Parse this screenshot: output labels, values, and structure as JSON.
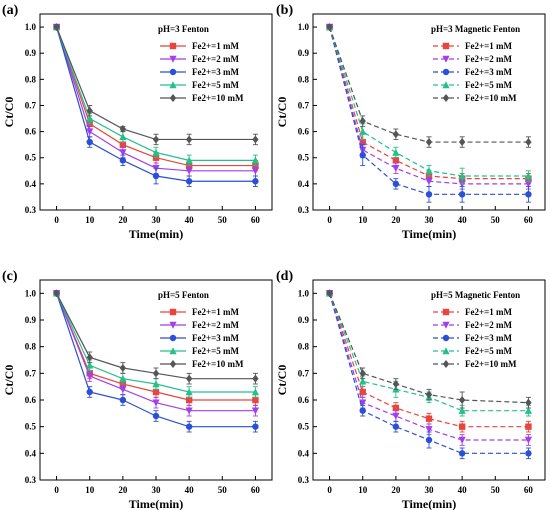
{
  "figure": {
    "panels": [
      {
        "label": "(a)",
        "title": "pH=3 Fenton",
        "ylabel": "Ct/C0",
        "xlabel": "Time(min)",
        "dashed": false,
        "legend": "top-right"
      },
      {
        "label": "(b)",
        "title": "pH=3 Magnetic Fenton",
        "ylabel": "Ct/C0",
        "xlabel": "Time(min)",
        "dashed": true,
        "legend": "top-right"
      },
      {
        "label": "(c)",
        "title": "pH=5 Fenton",
        "ylabel": "Ct/C0",
        "xlabel": "Time(min)",
        "dashed": false,
        "legend": "top-right"
      },
      {
        "label": "(d)",
        "title": "pH=5 Magnetic Fenton",
        "ylabel": "Ct/C0",
        "xlabel": "Time(min)",
        "dashed": true,
        "legend": "top-right"
      }
    ]
  },
  "colors": {
    "1mM": "#e8453c",
    "2mM": "#a43ee8",
    "3mM": "#2b4fd6",
    "5mM": "#25c08a",
    "10mM": "#555555"
  },
  "chart_data": [
    {
      "type": "line",
      "title": "pH=3 Fenton",
      "xlabel": "Time(min)",
      "ylabel": "Ct/C0",
      "x": [
        0,
        10,
        20,
        30,
        40,
        60
      ],
      "xticks": [
        "0",
        "10",
        "20",
        "30",
        "40",
        "50",
        "60"
      ],
      "yticks": [
        "0.3",
        "0.4",
        "0.5",
        "0.6",
        "0.7",
        "0.8",
        "0.9",
        "1.0"
      ],
      "xlim": [
        -5,
        65
      ],
      "ylim": [
        0.3,
        1.05
      ],
      "series": [
        {
          "name": "Fe2+=1 mM",
          "color": "#e8453c",
          "marker": "square",
          "values": [
            1.0,
            0.63,
            0.55,
            0.5,
            0.47,
            0.47
          ],
          "err": [
            0,
            0.02,
            0.02,
            0.02,
            0.02,
            0.02
          ]
        },
        {
          "name": "Fe2+=2 mM",
          "color": "#a43ee8",
          "marker": "triangle-down",
          "values": [
            1.0,
            0.6,
            0.52,
            0.46,
            0.45,
            0.45
          ],
          "err": [
            0,
            0.02,
            0.02,
            0.02,
            0.02,
            0.02
          ]
        },
        {
          "name": "Fe2+=3 mM",
          "color": "#2b4fd6",
          "marker": "circle",
          "values": [
            1.0,
            0.56,
            0.49,
            0.43,
            0.41,
            0.41
          ],
          "err": [
            0,
            0.02,
            0.02,
            0.03,
            0.02,
            0.02
          ]
        },
        {
          "name": "Fe2+=5 mM",
          "color": "#25c08a",
          "marker": "triangle-up",
          "values": [
            1.0,
            0.65,
            0.58,
            0.52,
            0.49,
            0.49
          ],
          "err": [
            0,
            0.02,
            0.02,
            0.02,
            0.02,
            0.02
          ]
        },
        {
          "name": "Fe2+=10 mM",
          "color": "#555555",
          "marker": "diamond",
          "values": [
            1.0,
            0.68,
            0.61,
            0.57,
            0.57,
            0.57
          ],
          "err": [
            0,
            0.02,
            0.01,
            0.02,
            0.02,
            0.02
          ]
        }
      ]
    },
    {
      "type": "line",
      "title": "pH=3 Magnetic Fenton",
      "xlabel": "Time(min)",
      "ylabel": "Ct/C0",
      "x": [
        0,
        10,
        20,
        30,
        40,
        60
      ],
      "xticks": [
        "0",
        "10",
        "20",
        "30",
        "40",
        "50",
        "60"
      ],
      "yticks": [
        "0.3",
        "0.4",
        "0.5",
        "0.6",
        "0.7",
        "0.8",
        "0.9",
        "1.0"
      ],
      "xlim": [
        -5,
        65
      ],
      "ylim": [
        0.3,
        1.05
      ],
      "series": [
        {
          "name": "Fe2+=1 mM",
          "color": "#e8453c",
          "marker": "square",
          "values": [
            1.0,
            0.56,
            0.49,
            0.43,
            0.42,
            0.42
          ],
          "err": [
            0,
            0.03,
            0.02,
            0.02,
            0.02,
            0.02
          ]
        },
        {
          "name": "Fe2+=2 mM",
          "color": "#a43ee8",
          "marker": "triangle-down",
          "values": [
            1.0,
            0.53,
            0.46,
            0.41,
            0.4,
            0.4
          ],
          "err": [
            0,
            0.03,
            0.02,
            0.02,
            0.02,
            0.02
          ]
        },
        {
          "name": "Fe2+=3 mM",
          "color": "#2b4fd6",
          "marker": "circle",
          "values": [
            1.0,
            0.51,
            0.4,
            0.36,
            0.36,
            0.36
          ],
          "err": [
            0,
            0.04,
            0.02,
            0.03,
            0.03,
            0.03
          ]
        },
        {
          "name": "Fe2+=5 mM",
          "color": "#25c08a",
          "marker": "triangle-up",
          "values": [
            1.0,
            0.6,
            0.52,
            0.45,
            0.43,
            0.43
          ],
          "err": [
            0,
            0.03,
            0.02,
            0.02,
            0.03,
            0.02
          ]
        },
        {
          "name": "Fe2+=10 mM",
          "color": "#555555",
          "marker": "diamond",
          "values": [
            1.0,
            0.64,
            0.59,
            0.56,
            0.56,
            0.56
          ],
          "err": [
            0,
            0.02,
            0.02,
            0.02,
            0.02,
            0.02
          ]
        }
      ]
    },
    {
      "type": "line",
      "title": "pH=5 Fenton",
      "xlabel": "Time(min)",
      "ylabel": "Ct/C0",
      "x": [
        0,
        10,
        20,
        30,
        40,
        60
      ],
      "xticks": [
        "0",
        "10",
        "20",
        "30",
        "40",
        "50",
        "60"
      ],
      "yticks": [
        "0.3",
        "0.4",
        "0.5",
        "0.6",
        "0.7",
        "0.8",
        "0.9",
        "1.0"
      ],
      "xlim": [
        -5,
        65
      ],
      "ylim": [
        0.3,
        1.05
      ],
      "series": [
        {
          "name": "Fe2+=1 mM",
          "color": "#e8453c",
          "marker": "square",
          "values": [
            1.0,
            0.7,
            0.66,
            0.63,
            0.6,
            0.6
          ],
          "err": [
            0,
            0.02,
            0.02,
            0.02,
            0.02,
            0.02
          ]
        },
        {
          "name": "Fe2+=2 mM",
          "color": "#a43ee8",
          "marker": "triangle-down",
          "values": [
            1.0,
            0.69,
            0.64,
            0.59,
            0.56,
            0.56
          ],
          "err": [
            0,
            0.02,
            0.02,
            0.02,
            0.02,
            0.02
          ]
        },
        {
          "name": "Fe2+=3 mM",
          "color": "#2b4fd6",
          "marker": "circle",
          "values": [
            1.0,
            0.63,
            0.6,
            0.54,
            0.5,
            0.5
          ],
          "err": [
            0,
            0.02,
            0.02,
            0.02,
            0.02,
            0.02
          ]
        },
        {
          "name": "Fe2+=5 mM",
          "color": "#25c08a",
          "marker": "triangle-up",
          "values": [
            1.0,
            0.73,
            0.68,
            0.66,
            0.63,
            0.63
          ],
          "err": [
            0,
            0.02,
            0.02,
            0.02,
            0.02,
            0.02
          ]
        },
        {
          "name": "Fe2+=10 mM",
          "color": "#555555",
          "marker": "diamond",
          "values": [
            1.0,
            0.76,
            0.72,
            0.7,
            0.68,
            0.68
          ],
          "err": [
            0,
            0.02,
            0.02,
            0.02,
            0.02,
            0.02
          ]
        }
      ]
    },
    {
      "type": "line",
      "title": "pH=5 Magnetic Fenton",
      "xlabel": "Time(min)",
      "ylabel": "Ct/C0",
      "x": [
        0,
        10,
        20,
        30,
        40,
        60
      ],
      "xticks": [
        "0",
        "10",
        "20",
        "30",
        "40",
        "50",
        "60"
      ],
      "yticks": [
        "0.3",
        "0.4",
        "0.5",
        "0.6",
        "0.7",
        "0.8",
        "0.9",
        "1.0"
      ],
      "xlim": [
        -5,
        65
      ],
      "ylim": [
        0.3,
        1.05
      ],
      "series": [
        {
          "name": "Fe2+=1 mM",
          "color": "#e8453c",
          "marker": "square",
          "values": [
            1.0,
            0.63,
            0.57,
            0.53,
            0.5,
            0.5
          ],
          "err": [
            0,
            0.02,
            0.02,
            0.02,
            0.02,
            0.02
          ]
        },
        {
          "name": "Fe2+=2 mM",
          "color": "#a43ee8",
          "marker": "triangle-down",
          "values": [
            1.0,
            0.59,
            0.54,
            0.49,
            0.45,
            0.45
          ],
          "err": [
            0,
            0.02,
            0.02,
            0.02,
            0.02,
            0.02
          ]
        },
        {
          "name": "Fe2+=3 mM",
          "color": "#2b4fd6",
          "marker": "circle",
          "values": [
            1.0,
            0.56,
            0.5,
            0.45,
            0.4,
            0.4
          ],
          "err": [
            0,
            0.02,
            0.02,
            0.03,
            0.02,
            0.02
          ]
        },
        {
          "name": "Fe2+=5 mM",
          "color": "#25c08a",
          "marker": "triangle-up",
          "values": [
            1.0,
            0.67,
            0.64,
            0.61,
            0.56,
            0.56
          ],
          "err": [
            0,
            0.02,
            0.03,
            0.02,
            0.02,
            0.02
          ]
        },
        {
          "name": "Fe2+=10 mM",
          "color": "#555555",
          "marker": "diamond",
          "values": [
            1.0,
            0.7,
            0.66,
            0.62,
            0.6,
            0.59
          ],
          "err": [
            0,
            0.02,
            0.02,
            0.02,
            0.03,
            0.02
          ]
        }
      ]
    }
  ]
}
